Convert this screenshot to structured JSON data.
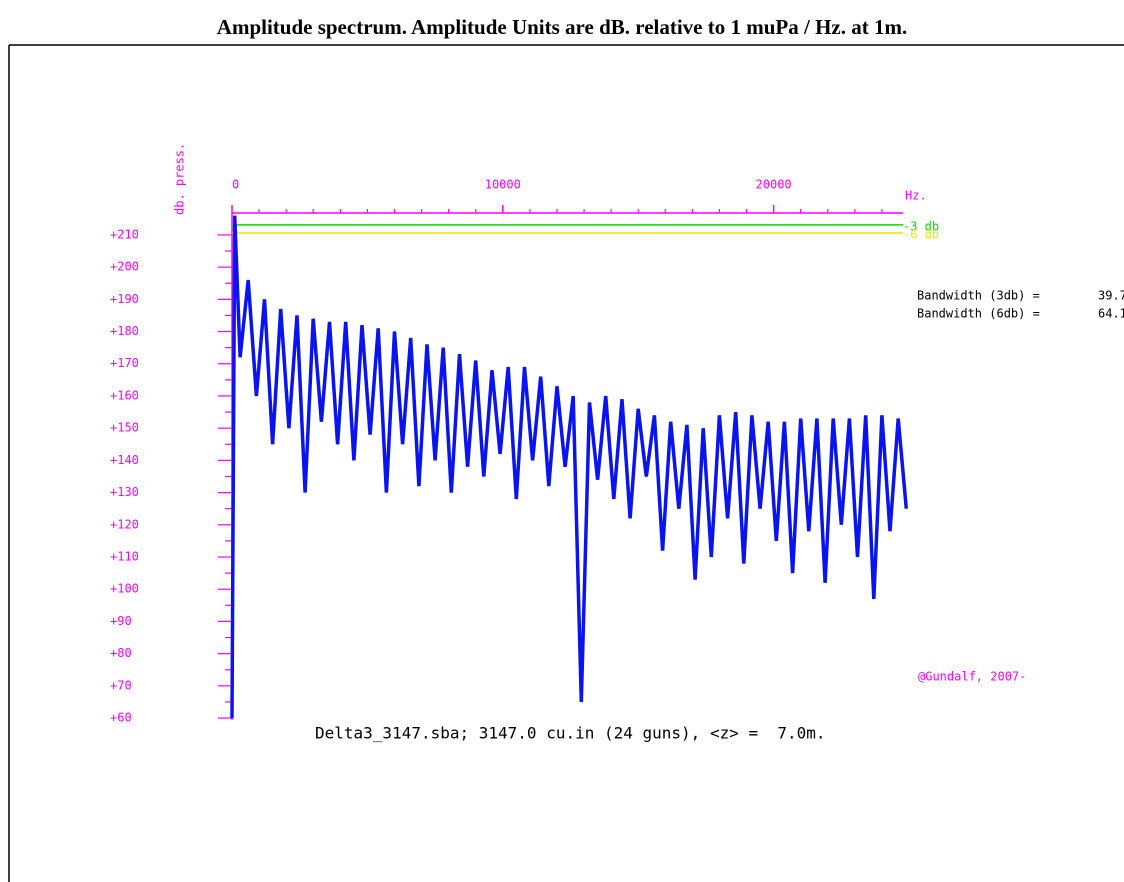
{
  "chart_data": {
    "type": "line",
    "title": "Amplitude spectrum. Amplitude Units are dB. relative to 1 muPa / Hz. at 1m.",
    "x_label": "Hz.",
    "y_label": "db. press.",
    "caption": "Delta3_3147.sba; 3147.0 cu.in (24 guns), <z> =  7.0m.",
    "credit": "@Gundalf, 2007-",
    "annotations": [
      {
        "text": "Bandwidth (3db) =",
        "value": 39.7
      },
      {
        "text": "Bandwidth (6db) =",
        "value": 64.1
      }
    ],
    "ref_lines": [
      {
        "label": "-3 db",
        "value": 213.1,
        "color": "#00e000"
      },
      {
        "label": "-6 db",
        "value": 210.6,
        "color": "#e8e800"
      }
    ],
    "xlim": [
      0,
      25000
    ],
    "xticks": [
      0,
      10000,
      20000
    ],
    "ylim": [
      59.4,
      216.8
    ],
    "yticks": [
      {
        "value": 60,
        "label": "+60"
      },
      {
        "value": 70,
        "label": "+70"
      },
      {
        "value": 80,
        "label": "+80"
      },
      {
        "value": 90,
        "label": "+90"
      },
      {
        "value": 100,
        "label": "+100"
      },
      {
        "value": 110,
        "label": "+110"
      },
      {
        "value": 120,
        "label": "+120"
      },
      {
        "value": 130,
        "label": "+130"
      },
      {
        "value": 140,
        "label": "+140"
      },
      {
        "value": 150,
        "label": "+150"
      },
      {
        "value": 160,
        "label": "+160"
      },
      {
        "value": 170,
        "label": "+170"
      },
      {
        "value": 180,
        "label": "+180"
      },
      {
        "value": 190,
        "label": "+190"
      },
      {
        "value": 200,
        "label": "+200"
      },
      {
        "value": 210,
        "label": "+210"
      }
    ],
    "x": [
      0,
      100,
      300,
      600,
      900,
      1200,
      1500,
      1800,
      2100,
      2400,
      2700,
      3000,
      3300,
      3600,
      3900,
      4200,
      4500,
      4800,
      5100,
      5400,
      5700,
      6000,
      6300,
      6600,
      6900,
      7200,
      7500,
      7800,
      8100,
      8400,
      8700,
      9000,
      9300,
      9600,
      9900,
      10200,
      10500,
      10800,
      11100,
      11400,
      11700,
      12000,
      12300,
      12600,
      12900,
      13200,
      13500,
      13800,
      14100,
      14400,
      14700,
      15000,
      15300,
      15600,
      15900,
      16200,
      16500,
      16800,
      17100,
      17400,
      17700,
      18000,
      18300,
      18600,
      18900,
      19200,
      19500,
      19800,
      20100,
      20400,
      20700,
      21000,
      21300,
      21600,
      21900,
      22200,
      22500,
      22800,
      23100,
      23400,
      23700,
      24000,
      24300,
      24600,
      24900
    ],
    "series": [
      {
        "color": "#0a14ee",
        "values": [
          60,
          216,
          172,
          196,
          160,
          190,
          145,
          187,
          150,
          185,
          130,
          184,
          152,
          183,
          145,
          183,
          140,
          182,
          148,
          181,
          130,
          180,
          145,
          178,
          132,
          176,
          140,
          175,
          130,
          173,
          138,
          171,
          135,
          168,
          142,
          169,
          128,
          169,
          140,
          166,
          132,
          163,
          138,
          160,
          65,
          158,
          134,
          160,
          128,
          159,
          122,
          156,
          135,
          154,
          112,
          152,
          125,
          151,
          103,
          150,
          110,
          154,
          122,
          155,
          108,
          154,
          125,
          152,
          115,
          152,
          105,
          153,
          118,
          153,
          102,
          153,
          120,
          153,
          110,
          154,
          97,
          154,
          118,
          153,
          125
        ]
      }
    ]
  }
}
